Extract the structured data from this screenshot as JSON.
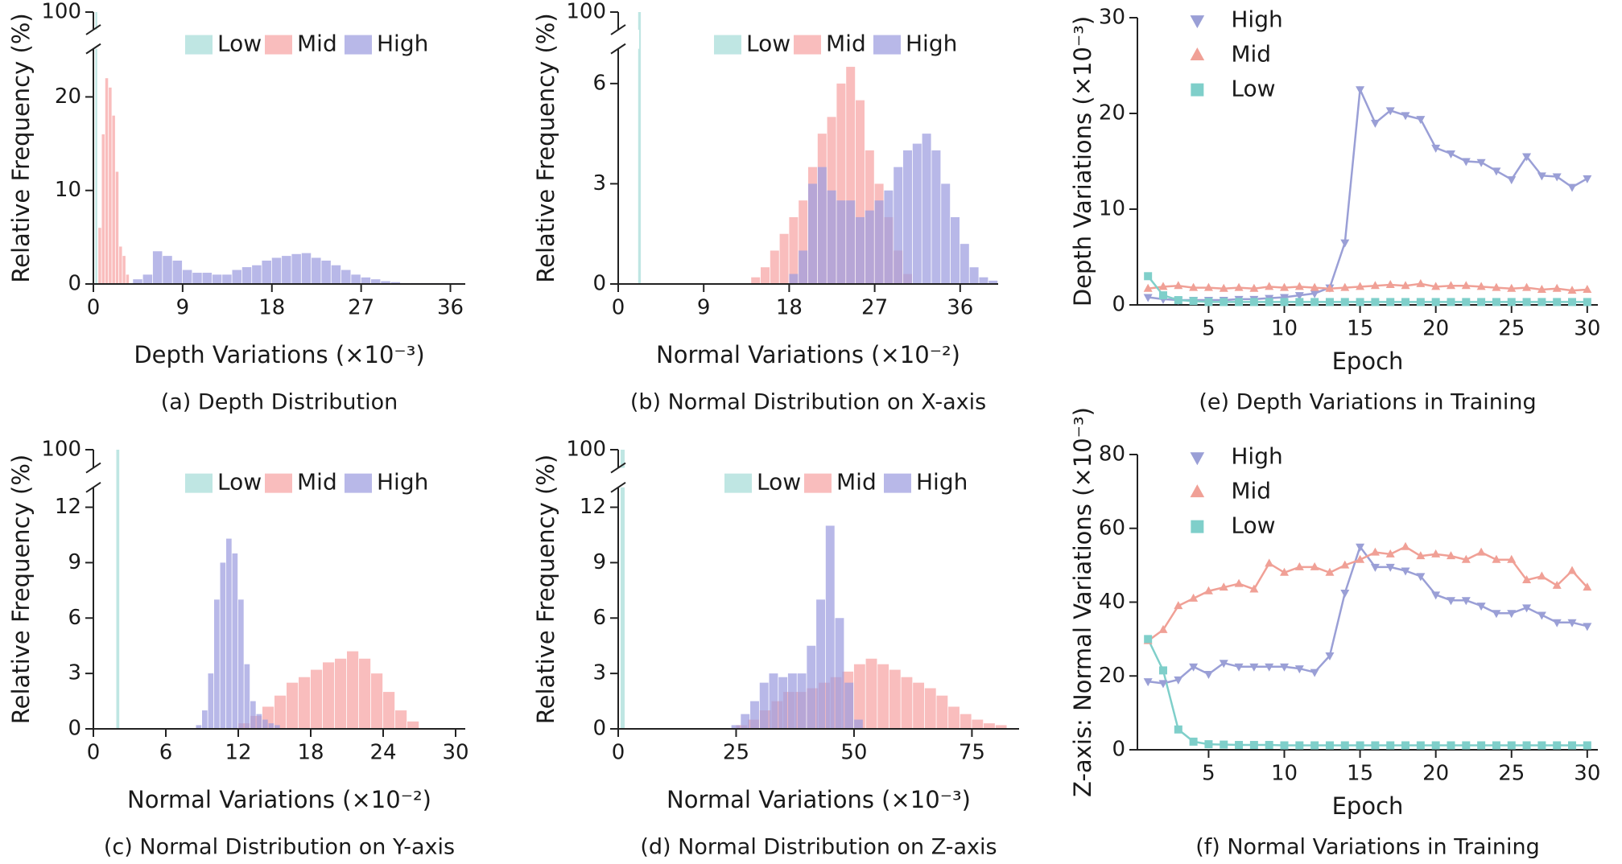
{
  "chart_data": [
    {
      "type": "histogram",
      "caption": "(a) Depth Distribution",
      "xlabel": "Depth Variations (×10⁻³)",
      "ylabel": "Relative Frequency (%)",
      "xlim": [
        0,
        37.5
      ],
      "xticks": [
        0,
        9,
        18,
        27,
        36
      ],
      "ylim": [
        0,
        100
      ],
      "ybreak": [
        25,
        98
      ],
      "yticks": [
        0,
        10,
        20,
        100
      ],
      "legend": "upper center",
      "series": [
        {
          "name": "Low",
          "color": "#a6dcd8",
          "bins": [
            0.2,
            0.45
          ],
          "values": [
            100
          ]
        },
        {
          "name": "Mid",
          "color": "#f7a3a3",
          "bins": [
            0.5,
            0.85,
            1.2,
            1.55,
            1.9,
            2.25,
            2.6,
            2.95,
            3.3,
            3.65
          ],
          "values": [
            6,
            16,
            22,
            21,
            18,
            12,
            4,
            3,
            1
          ]
        },
        {
          "name": "High",
          "color": "#9d9ddf",
          "bins": [
            4,
            5,
            6,
            7,
            8,
            9,
            10,
            11,
            12,
            13,
            14,
            15,
            16,
            17,
            18,
            19,
            20,
            21,
            22,
            23,
            24,
            25,
            26,
            27,
            28,
            29,
            30,
            31,
            32,
            33,
            34,
            35,
            36,
            37
          ],
          "values": [
            0.5,
            1,
            3.5,
            3,
            2.5,
            1.5,
            1.2,
            1.2,
            1,
            1,
            1.5,
            1.8,
            2,
            2.5,
            2.8,
            3,
            3.2,
            3.3,
            2.8,
            2.5,
            2,
            1.5,
            1,
            0.7,
            0.5,
            0.3,
            0.2,
            0.1,
            0.1,
            0.1,
            0.1,
            0.1,
            0.1
          ]
        }
      ]
    },
    {
      "type": "histogram",
      "caption": "(b) Normal Distribution on X-axis",
      "xlabel": "Normal Variations (×10⁻²)",
      "ylabel": "Relative Frequency (%)",
      "xlim": [
        0,
        40
      ],
      "xticks": [
        0,
        9,
        18,
        27,
        36
      ],
      "ylim": [
        0,
        100
      ],
      "ybreak": [
        7,
        98
      ],
      "yticks": [
        0,
        3,
        6,
        100
      ],
      "legend": "upper center",
      "series": [
        {
          "name": "Low",
          "color": "#a6dcd8",
          "bins": [
            2.1,
            2.45
          ],
          "values": [
            100
          ]
        },
        {
          "name": "Mid",
          "color": "#f7a3a3",
          "bins": [
            14,
            15,
            16,
            17,
            18,
            19,
            20,
            21,
            22,
            23,
            24,
            25,
            26,
            27,
            28,
            29,
            30,
            31
          ],
          "values": [
            0.2,
            0.5,
            1,
            1.5,
            2,
            2.5,
            3.5,
            4.5,
            5,
            6,
            6.5,
            5.5,
            4,
            3,
            2,
            1,
            0.3
          ]
        },
        {
          "name": "High",
          "color": "#9d9ddf",
          "bins": [
            18,
            19,
            20,
            21,
            22,
            23,
            24,
            25,
            26,
            27,
            28,
            29,
            30,
            31,
            32,
            33,
            34,
            35,
            36,
            37,
            38,
            39,
            40
          ],
          "values": [
            0.3,
            1,
            3,
            3.5,
            2.8,
            2.5,
            2.5,
            2,
            2.2,
            2.5,
            2.8,
            3.5,
            4,
            4.2,
            4.5,
            4,
            3,
            2,
            1.2,
            0.5,
            0.2,
            0.1
          ]
        }
      ]
    },
    {
      "type": "line",
      "caption": "(e) Depth Variations in Training",
      "xlabel": "Epoch",
      "ylabel": "Depth Variations (×10⁻³)",
      "xlim": [
        0.3,
        30.7
      ],
      "xticks": [
        5,
        10,
        15,
        20,
        25,
        30
      ],
      "ylim": [
        0,
        30
      ],
      "yticks": [
        0,
        10,
        20,
        30
      ],
      "legend": "upper left",
      "x": [
        1,
        2,
        3,
        4,
        5,
        6,
        7,
        8,
        9,
        10,
        11,
        12,
        13,
        14,
        15,
        16,
        17,
        18,
        19,
        20,
        21,
        22,
        23,
        24,
        25,
        26,
        27,
        28,
        29,
        30
      ],
      "series": [
        {
          "name": "High",
          "color": "#9a9fd6",
          "marker": "triangle-down",
          "values": [
            0.8,
            0.6,
            0.5,
            0.5,
            0.5,
            0.5,
            0.6,
            0.6,
            0.7,
            0.8,
            1.0,
            1.2,
            1.8,
            6.5,
            22.5,
            19,
            20.3,
            19.8,
            19.4,
            16.4,
            15.8,
            15,
            14.9,
            14,
            13.1,
            15.5,
            13.5,
            13.4,
            12.3,
            13.2
          ]
        },
        {
          "name": "Mid",
          "color": "#f0a096",
          "marker": "triangle-up",
          "values": [
            1.7,
            1.9,
            2,
            1.8,
            1.8,
            1.7,
            1.8,
            1.7,
            1.9,
            1.8,
            1.9,
            1.8,
            1.7,
            1.8,
            1.9,
            2.0,
            2.1,
            2.0,
            2.2,
            1.9,
            2.0,
            2.0,
            1.9,
            1.8,
            1.7,
            1.8,
            1.6,
            1.7,
            1.5,
            1.6
          ]
        },
        {
          "name": "Low",
          "color": "#7fcfca",
          "marker": "square",
          "values": [
            3.0,
            1.0,
            0.5,
            0.4,
            0.3,
            0.3,
            0.3,
            0.3,
            0.3,
            0.3,
            0.3,
            0.3,
            0.3,
            0.3,
            0.3,
            0.3,
            0.3,
            0.3,
            0.3,
            0.3,
            0.3,
            0.3,
            0.3,
            0.3,
            0.3,
            0.3,
            0.3,
            0.3,
            0.3,
            0.3
          ]
        }
      ]
    },
    {
      "type": "histogram",
      "caption": "(c) Normal Distribution on Y-axis",
      "xlabel": "Normal Variations (×10⁻²)",
      "ylabel": "Relative Frequency (%)",
      "xlim": [
        0,
        30.8
      ],
      "xticks": [
        0,
        6,
        12,
        18,
        24,
        30
      ],
      "ylim": [
        0,
        100
      ],
      "ybreak": [
        13,
        98
      ],
      "yticks": [
        0,
        3,
        6,
        9,
        12,
        100
      ],
      "legend": "upper center",
      "series": [
        {
          "name": "Low",
          "color": "#a6dcd8",
          "bins": [
            1.9,
            2.2
          ],
          "values": [
            100
          ]
        },
        {
          "name": "Mid",
          "color": "#f7a3a3",
          "bins": [
            12,
            13,
            14,
            15,
            16,
            17,
            18,
            19,
            20,
            21,
            22,
            23,
            24,
            25,
            26,
            27
          ],
          "values": [
            0.3,
            0.7,
            1.2,
            1.8,
            2.5,
            2.8,
            3.2,
            3.6,
            3.8,
            4.2,
            3.8,
            3,
            2,
            1,
            0.4
          ]
        },
        {
          "name": "High",
          "color": "#9d9ddf",
          "bins": [
            8.5,
            9,
            9.5,
            10,
            10.5,
            11,
            11.5,
            12,
            12.5,
            13,
            13.5,
            14,
            14.5,
            15,
            15.5
          ],
          "values": [
            0.2,
            1,
            3,
            7,
            9,
            10.3,
            9.5,
            7,
            3.5,
            1.5,
            0.8,
            0.5,
            0.3,
            0.2
          ]
        }
      ]
    },
    {
      "type": "histogram",
      "caption": "(d) Normal Distribution on Z-axis",
      "xlabel": "Normal Variations (×10⁻³)",
      "ylabel": "Relative Frequency (%)",
      "xlim": [
        0,
        85
      ],
      "xticks": [
        0,
        25,
        50,
        75
      ],
      "ylim": [
        0,
        100
      ],
      "ybreak": [
        13,
        98
      ],
      "yticks": [
        0,
        3,
        6,
        9,
        12,
        100
      ],
      "legend": "upper center",
      "series": [
        {
          "name": "Low",
          "color": "#a6dcd8",
          "bins": [
            0.5,
            1.5
          ],
          "values": [
            100
          ]
        },
        {
          "name": "Mid",
          "color": "#f7a3a3",
          "bins": [
            25,
            27.5,
            30,
            32.5,
            35,
            37.5,
            40,
            42.5,
            45,
            47.5,
            50,
            52.5,
            55,
            57.5,
            60,
            62.5,
            65,
            67.5,
            70,
            72.5,
            75,
            77.5,
            80,
            82.5
          ],
          "values": [
            0.2,
            0.5,
            1,
            1.5,
            2,
            2,
            2.2,
            2.5,
            2.8,
            3.1,
            3.5,
            3.8,
            3.5,
            3.2,
            2.8,
            2.5,
            2.2,
            1.8,
            1.2,
            0.8,
            0.5,
            0.3,
            0.2
          ]
        },
        {
          "name": "High",
          "color": "#9d9ddf",
          "bins": [
            24,
            26,
            28,
            30,
            32,
            34,
            36,
            38,
            40,
            42,
            44,
            46,
            48,
            50,
            52
          ],
          "values": [
            0.2,
            0.8,
            1.5,
            2.5,
            3,
            2.8,
            3,
            3,
            4.5,
            7,
            11,
            6,
            2.5,
            0.5
          ]
        }
      ]
    },
    {
      "type": "line",
      "caption": "(f) Normal Variations in Training",
      "xlabel": "Epoch",
      "ylabel": "Z-axis: Normal Variations (×10⁻³)",
      "xlim": [
        0.3,
        30.7
      ],
      "xticks": [
        5,
        10,
        15,
        20,
        25,
        30
      ],
      "ylim": [
        0,
        80
      ],
      "yticks": [
        0,
        20,
        40,
        60,
        80
      ],
      "legend": "upper left",
      "x": [
        1,
        2,
        3,
        4,
        5,
        6,
        7,
        8,
        9,
        10,
        11,
        12,
        13,
        14,
        15,
        16,
        17,
        18,
        19,
        20,
        21,
        22,
        23,
        24,
        25,
        26,
        27,
        28,
        29,
        30
      ],
      "series": [
        {
          "name": "High",
          "color": "#9a9fd6",
          "marker": "triangle-down",
          "values": [
            18.5,
            18,
            19,
            22.5,
            20.5,
            23.5,
            22.5,
            22.5,
            22.5,
            22.5,
            22,
            21,
            25.5,
            42.5,
            55,
            49.5,
            49.5,
            48.5,
            47,
            42,
            40.5,
            40.5,
            39,
            37,
            37,
            38.5,
            36.5,
            34.5,
            34.5,
            33.5
          ]
        },
        {
          "name": "Mid",
          "color": "#f0a096",
          "marker": "triangle-up",
          "values": [
            29.5,
            32.5,
            39,
            41,
            43,
            44,
            45,
            43.5,
            50.5,
            48,
            49.5,
            49.5,
            48,
            50,
            51.5,
            53.5,
            53,
            55,
            52.5,
            53,
            52.5,
            51.5,
            53.5,
            51.5,
            51.5,
            46,
            47,
            44.5,
            48.5,
            44
          ]
        },
        {
          "name": "Low",
          "color": "#7fcfca",
          "marker": "square",
          "values": [
            30,
            21.5,
            5.5,
            2.2,
            1.5,
            1.4,
            1.3,
            1.3,
            1.3,
            1.2,
            1.2,
            1.2,
            1.2,
            1.2,
            1.2,
            1.2,
            1.2,
            1.2,
            1.2,
            1.2,
            1.2,
            1.2,
            1.2,
            1.2,
            1.2,
            1.2,
            1.2,
            1.2,
            1.2,
            1.2
          ]
        }
      ]
    }
  ]
}
